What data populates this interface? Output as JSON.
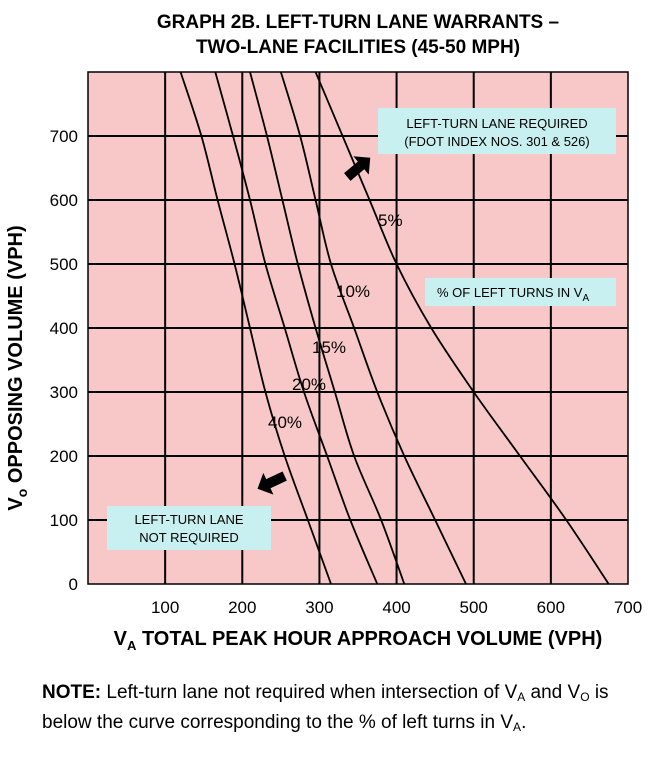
{
  "chart_data": {
    "type": "line",
    "title_line1": "GRAPH 2B.  LEFT-TURN LANE WARRANTS –",
    "title_line2": "TWO-LANE FACILITIES (45-50 MPH)",
    "xlabel_main": "V",
    "xlabel_sub": "A",
    "xlabel_rest": " TOTAL PEAK HOUR APPROACH VOLUME (VPH)",
    "ylabel_main": "V",
    "ylabel_sub": "o",
    "ylabel_rest": " OPPOSING VOLUME (VPH)",
    "xlim": [
      0,
      700
    ],
    "ylim": [
      0,
      800
    ],
    "x_ticks": [
      100,
      200,
      300,
      400,
      500,
      600,
      700
    ],
    "x_tick_labels": [
      "100",
      "200",
      "300",
      "400",
      "500",
      "600",
      "700"
    ],
    "y_ticks": [
      0,
      100,
      200,
      300,
      400,
      500,
      600,
      700
    ],
    "y_tick_labels": [
      "0",
      "100",
      "200",
      "300",
      "400",
      "500",
      "600",
      "700"
    ],
    "grid": true,
    "series": [
      {
        "name": "5%",
        "label": "5%",
        "points": [
          [
            295,
            800
          ],
          [
            330,
            700
          ],
          [
            365,
            600
          ],
          [
            400,
            500
          ],
          [
            445,
            400
          ],
          [
            500,
            300
          ],
          [
            560,
            200
          ],
          [
            620,
            100
          ],
          [
            675,
            0
          ]
        ]
      },
      {
        "name": "10%",
        "label": "10%",
        "points": [
          [
            250,
            800
          ],
          [
            275,
            700
          ],
          [
            295,
            600
          ],
          [
            315,
            500
          ],
          [
            345,
            400
          ],
          [
            375,
            300
          ],
          [
            410,
            200
          ],
          [
            450,
            100
          ],
          [
            490,
            0
          ]
        ]
      },
      {
        "name": "15%",
        "label": "15%",
        "points": [
          [
            210,
            800
          ],
          [
            232,
            700
          ],
          [
            252,
            600
          ],
          [
            272,
            500
          ],
          [
            295,
            400
          ],
          [
            320,
            300
          ],
          [
            345,
            200
          ],
          [
            380,
            100
          ],
          [
            410,
            0
          ]
        ]
      },
      {
        "name": "20%",
        "label": "20%",
        "points": [
          [
            165,
            800
          ],
          [
            188,
            700
          ],
          [
            210,
            600
          ],
          [
            230,
            500
          ],
          [
            255,
            400
          ],
          [
            280,
            300
          ],
          [
            310,
            200
          ],
          [
            340,
            100
          ],
          [
            375,
            0
          ]
        ]
      },
      {
        "name": "40%",
        "label": "40%",
        "points": [
          [
            120,
            800
          ],
          [
            147,
            700
          ],
          [
            168,
            600
          ],
          [
            190,
            500
          ],
          [
            210,
            400
          ],
          [
            230,
            300
          ],
          [
            255,
            200
          ],
          [
            285,
            100
          ],
          [
            315,
            0
          ]
        ]
      }
    ],
    "annotations": {
      "required_line1": "LEFT-TURN LANE REQUIRED",
      "required_line2": "(FDOT INDEX NOS. 301 & 526)",
      "pct_text": "% OF LEFT TURNS IN V",
      "pct_sub": "A",
      "not_required_line1": "LEFT-TURN LANE",
      "not_required_line2": "NOT REQUIRED"
    },
    "colors": {
      "plot_bg": "#F8C8C8",
      "box_bg": "#C8F0F0",
      "line": "#000000"
    }
  },
  "note": {
    "label": "NOTE:",
    "text_a": "  Left-turn lane not required when intersection of V",
    "sub_a": "A",
    "text_b": " and V",
    "sub_o": "O",
    "text_c": " is below the curve corresponding to the % of left turns in V",
    "sub_a2": "A",
    "text_d": "."
  }
}
